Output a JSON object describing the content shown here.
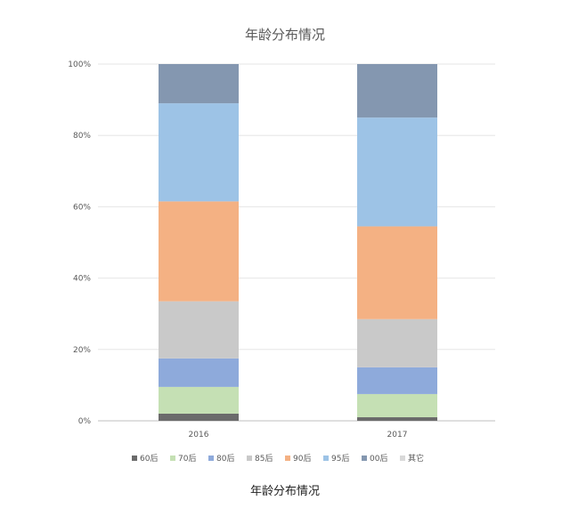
{
  "caption": "年龄分布情况",
  "chart_data": {
    "type": "bar",
    "stacked": true,
    "title": "年龄分布情况",
    "xlabel": "",
    "ylabel": "",
    "categories": [
      "2016",
      "2017"
    ],
    "ylim": [
      0,
      100
    ],
    "yticks": [
      "0%",
      "20%",
      "40%",
      "60%",
      "80%",
      "100%"
    ],
    "grid": true,
    "legend_position": "bottom",
    "series": [
      {
        "name": "60后",
        "color": "#6b6b6b",
        "values": [
          2,
          1
        ]
      },
      {
        "name": "70后",
        "color": "#c5e0b4",
        "values": [
          7.5,
          6.5
        ]
      },
      {
        "name": "80后",
        "color": "#8eaadb",
        "values": [
          8,
          7.5
        ]
      },
      {
        "name": "85后",
        "color": "#c9c9c9",
        "values": [
          16,
          13.5
        ]
      },
      {
        "name": "90后",
        "color": "#f4b183",
        "values": [
          28,
          26
        ]
      },
      {
        "name": "95后",
        "color": "#9dc3e6",
        "values": [
          27.5,
          30.5
        ]
      },
      {
        "name": "00后",
        "color": "#8497b0",
        "values": [
          11,
          15
        ]
      },
      {
        "name": "其它",
        "color": "#d9d9d9",
        "values": [
          0,
          0
        ]
      }
    ]
  }
}
